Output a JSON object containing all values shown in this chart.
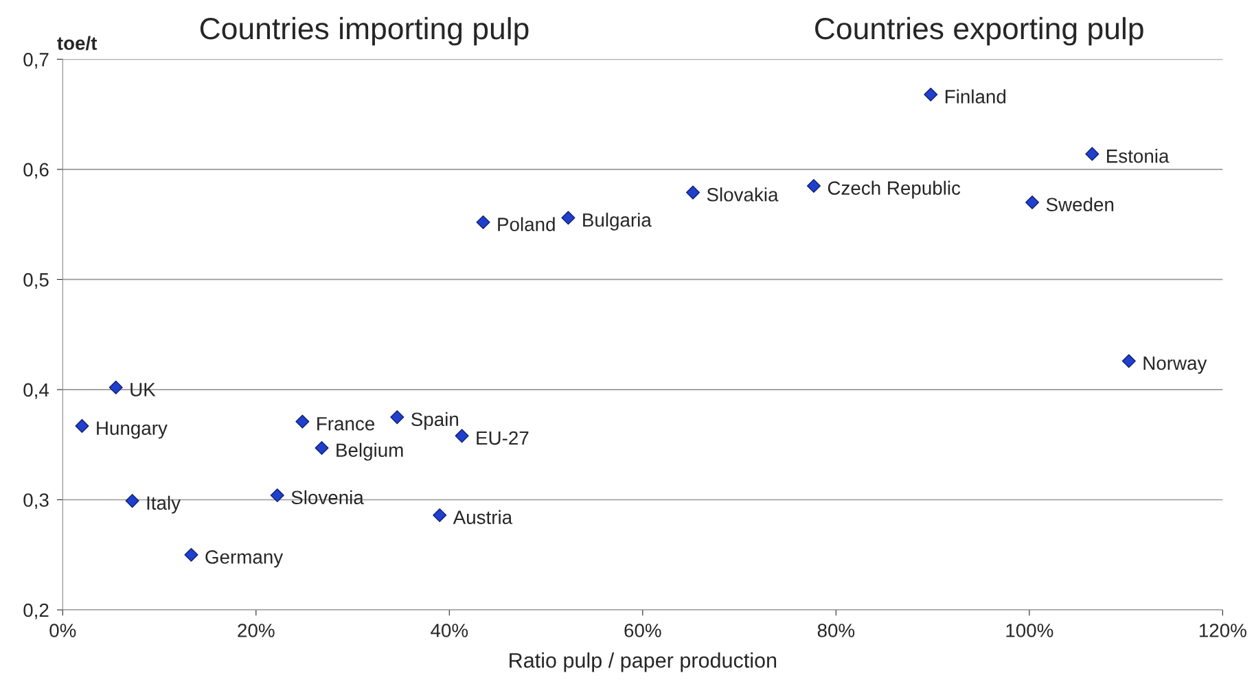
{
  "chart_data": {
    "type": "scatter",
    "xlabel": "Ratio pulp / paper production",
    "ylabel": "toe/t",
    "annotations": [
      "Countries importing pulp",
      "Countries exporting pulp"
    ],
    "xlim": [
      0,
      120
    ],
    "xticks": [
      {
        "value": 0,
        "label": "0%"
      },
      {
        "value": 20,
        "label": "20%"
      },
      {
        "value": 40,
        "label": "40%"
      },
      {
        "value": 60,
        "label": "60%"
      },
      {
        "value": 80,
        "label": "80%"
      },
      {
        "value": 100,
        "label": "100%"
      },
      {
        "value": 120,
        "label": "120%"
      }
    ],
    "ylim": [
      0.2,
      0.7
    ],
    "yticks": [
      {
        "value": 0.2,
        "label": "0,2"
      },
      {
        "value": 0.3,
        "label": "0,3"
      },
      {
        "value": 0.4,
        "label": "0,4"
      },
      {
        "value": 0.5,
        "label": "0,5"
      },
      {
        "value": 0.6,
        "label": "0,6"
      },
      {
        "value": 0.7,
        "label": "0,7"
      }
    ],
    "grid": "y",
    "legend": false,
    "marker": "diamond",
    "series": [
      {
        "name": "Finland",
        "color": "#1f3fcf",
        "x": [
          89.8
        ],
        "values": [
          0.668
        ]
      },
      {
        "name": "Estonia",
        "color": "#1f3fcf",
        "x": [
          106.5
        ],
        "values": [
          0.614
        ]
      },
      {
        "name": "Slovakia",
        "color": "#1f3fcf",
        "x": [
          65.2
        ],
        "values": [
          0.579
        ]
      },
      {
        "name": "Czech Republic",
        "color": "#1f3fcf",
        "x": [
          77.7
        ],
        "values": [
          0.585
        ]
      },
      {
        "name": "Sweden",
        "color": "#1f3fcf",
        "x": [
          100.3
        ],
        "values": [
          0.57
        ]
      },
      {
        "name": "Poland",
        "color": "#1f3fcf",
        "x": [
          43.5
        ],
        "values": [
          0.552
        ]
      },
      {
        "name": "Bulgaria",
        "color": "#1f3fcf",
        "x": [
          52.3
        ],
        "values": [
          0.556
        ]
      },
      {
        "name": "Norway",
        "color": "#1f3fcf",
        "x": [
          110.3
        ],
        "values": [
          0.426
        ]
      },
      {
        "name": "UK",
        "color": "#1f3fcf",
        "x": [
          5.5
        ],
        "values": [
          0.402
        ]
      },
      {
        "name": "Hungary",
        "color": "#1f3fcf",
        "x": [
          2.0
        ],
        "values": [
          0.367
        ]
      },
      {
        "name": "France",
        "color": "#1f3fcf",
        "x": [
          24.8
        ],
        "values": [
          0.371
        ]
      },
      {
        "name": "Spain",
        "color": "#1f3fcf",
        "x": [
          34.6
        ],
        "values": [
          0.375
        ]
      },
      {
        "name": "Belgium",
        "color": "#1f3fcf",
        "x": [
          26.8
        ],
        "values": [
          0.347
        ]
      },
      {
        "name": "EU-27",
        "color": "#1f3fcf",
        "x": [
          41.3
        ],
        "values": [
          0.358
        ]
      },
      {
        "name": "Slovenia",
        "color": "#1f3fcf",
        "x": [
          22.2
        ],
        "values": [
          0.304
        ]
      },
      {
        "name": "Italy",
        "color": "#1f3fcf",
        "x": [
          7.2
        ],
        "values": [
          0.299
        ]
      },
      {
        "name": "Austria",
        "color": "#1f3fcf",
        "x": [
          39.0
        ],
        "values": [
          0.286
        ]
      },
      {
        "name": "Germany",
        "color": "#1f3fcf",
        "x": [
          13.3
        ],
        "values": [
          0.25
        ]
      }
    ]
  }
}
